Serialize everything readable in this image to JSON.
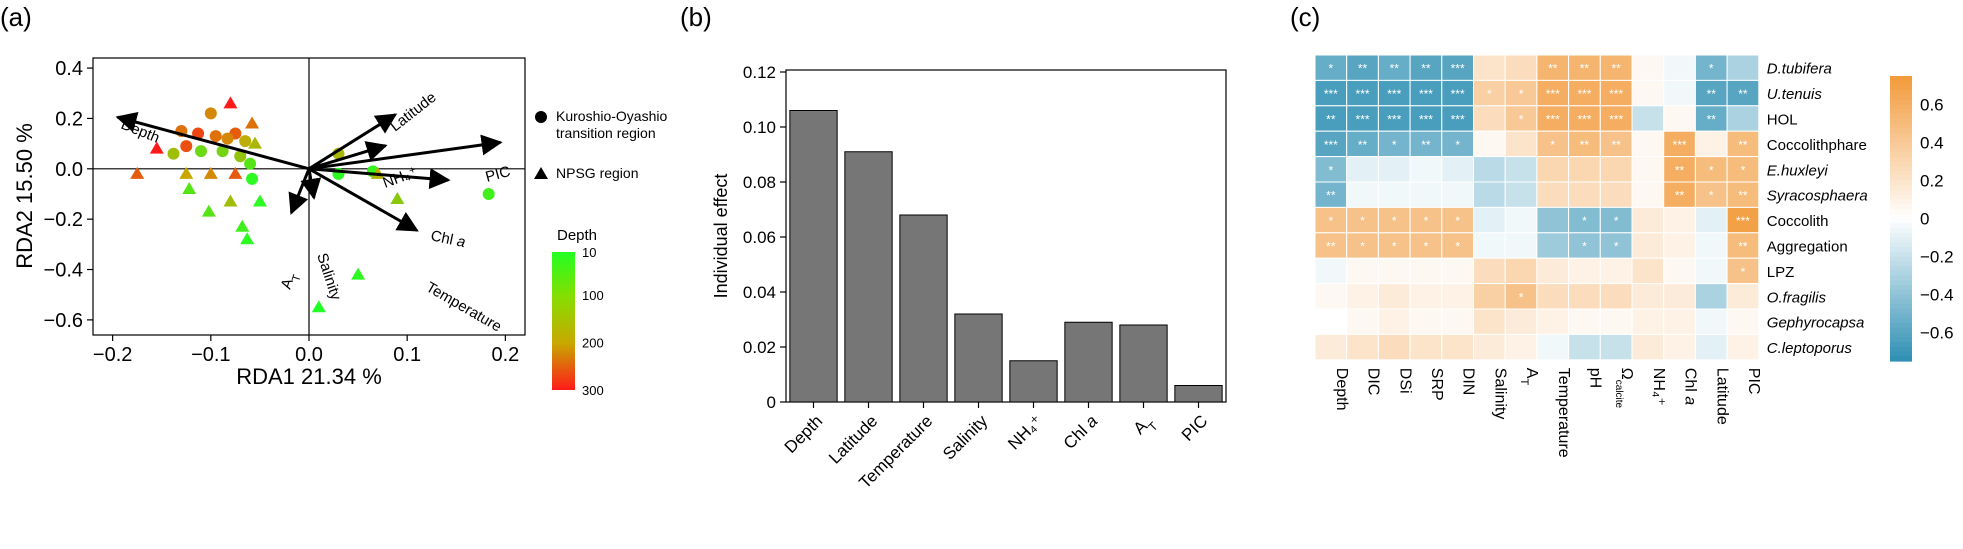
{
  "panels": {
    "a": {
      "label": "(a)"
    },
    "b": {
      "label": "(b)"
    },
    "c": {
      "label": "(c)"
    }
  },
  "colors": {
    "bar_fill": "#767676",
    "heat_neg": "#2e8fb3",
    "heat_pos": "#f29a3a",
    "depth_low": "#22ff22",
    "depth_mid": "#c8a800",
    "depth_high": "#ff1a1a"
  },
  "chart_data": [
    {
      "panel": "a",
      "type": "scatter",
      "xlabel": "RDA1 21.34 %",
      "ylabel": "RDA2 15.50 %",
      "xlim": [
        -0.22,
        0.22
      ],
      "ylim": [
        -0.66,
        0.44
      ],
      "xticks": [
        "−0.2",
        "−0.1",
        "0.0",
        "0.1",
        "0.2"
      ],
      "yticks": [
        "0.4",
        "0.2",
        "0.0",
        "−0.2",
        "−0.4",
        "−0.6"
      ],
      "legend_shapes": [
        {
          "shape": "circle",
          "label_line1": "Kuroshio-Oyashio",
          "label_line2": "transition region"
        },
        {
          "shape": "triangle",
          "label_line1": "NPSG region",
          "label_line2": ""
        }
      ],
      "colorbar": {
        "title": "Depth",
        "ticks": [
          "10",
          "100",
          "200",
          "300"
        ]
      },
      "arrows": [
        {
          "label": "Depth",
          "x": -0.195,
          "y": 0.205
        },
        {
          "label": "Latitude",
          "x": 0.088,
          "y": 0.215
        },
        {
          "label": "NH₄⁺",
          "x": 0.078,
          "y": 0.092
        },
        {
          "label": "PIC",
          "x": 0.195,
          "y": 0.105
        },
        {
          "label": "Chl a",
          "x": 0.142,
          "y": -0.045
        },
        {
          "label": "Temperature",
          "x": 0.11,
          "y": -0.245
        },
        {
          "label": "Salinity",
          "x": 0.005,
          "y": -0.115
        },
        {
          "label": "A_T",
          "x": -0.018,
          "y": -0.175
        }
      ],
      "points": [
        {
          "x": -0.1,
          "y": 0.22,
          "shape": "circle",
          "depth": 200
        },
        {
          "x": -0.08,
          "y": 0.26,
          "shape": "triangle",
          "depth": 300
        },
        {
          "x": -0.058,
          "y": 0.18,
          "shape": "triangle",
          "depth": 220
        },
        {
          "x": -0.155,
          "y": 0.08,
          "shape": "triangle",
          "depth": 300
        },
        {
          "x": -0.13,
          "y": 0.15,
          "shape": "circle",
          "depth": 220
        },
        {
          "x": -0.113,
          "y": 0.14,
          "shape": "circle",
          "depth": 260
        },
        {
          "x": -0.095,
          "y": 0.13,
          "shape": "circle",
          "depth": 220
        },
        {
          "x": -0.075,
          "y": 0.14,
          "shape": "circle",
          "depth": 240
        },
        {
          "x": -0.065,
          "y": 0.11,
          "shape": "circle",
          "depth": 160
        },
        {
          "x": -0.055,
          "y": 0.1,
          "shape": "triangle",
          "depth": 140
        },
        {
          "x": -0.138,
          "y": 0.06,
          "shape": "circle",
          "depth": 130
        },
        {
          "x": -0.125,
          "y": 0.09,
          "shape": "circle",
          "depth": 250
        },
        {
          "x": -0.11,
          "y": 0.07,
          "shape": "circle",
          "depth": 80
        },
        {
          "x": -0.088,
          "y": 0.07,
          "shape": "circle",
          "depth": 90
        },
        {
          "x": -0.083,
          "y": 0.12,
          "shape": "circle",
          "depth": 200
        },
        {
          "x": -0.07,
          "y": 0.05,
          "shape": "circle",
          "depth": 120
        },
        {
          "x": -0.06,
          "y": 0.02,
          "shape": "circle",
          "depth": 60
        },
        {
          "x": -0.175,
          "y": -0.02,
          "shape": "triangle",
          "depth": 240
        },
        {
          "x": -0.125,
          "y": -0.02,
          "shape": "triangle",
          "depth": 170
        },
        {
          "x": -0.1,
          "y": -0.02,
          "shape": "triangle",
          "depth": 200
        },
        {
          "x": -0.075,
          "y": -0.02,
          "shape": "triangle",
          "depth": 240
        },
        {
          "x": -0.058,
          "y": -0.04,
          "shape": "circle",
          "depth": 20
        },
        {
          "x": -0.122,
          "y": -0.08,
          "shape": "triangle",
          "depth": 60
        },
        {
          "x": -0.08,
          "y": -0.13,
          "shape": "triangle",
          "depth": 130
        },
        {
          "x": -0.05,
          "y": -0.13,
          "shape": "triangle",
          "depth": 20
        },
        {
          "x": -0.102,
          "y": -0.17,
          "shape": "triangle",
          "depth": 60
        },
        {
          "x": -0.068,
          "y": -0.23,
          "shape": "triangle",
          "depth": 40
        },
        {
          "x": -0.063,
          "y": -0.28,
          "shape": "triangle",
          "depth": 20
        },
        {
          "x": 0.03,
          "y": 0.06,
          "shape": "circle",
          "depth": 140
        },
        {
          "x": 0.03,
          "y": -0.02,
          "shape": "circle",
          "depth": 20
        },
        {
          "x": 0.065,
          "y": -0.01,
          "shape": "circle",
          "depth": 30
        },
        {
          "x": 0.07,
          "y": -0.02,
          "shape": "triangle",
          "depth": 150
        },
        {
          "x": 0.09,
          "y": -0.12,
          "shape": "triangle",
          "depth": 110
        },
        {
          "x": 0.183,
          "y": -0.1,
          "shape": "circle",
          "depth": 40
        },
        {
          "x": 0.05,
          "y": -0.42,
          "shape": "triangle",
          "depth": 20
        },
        {
          "x": 0.01,
          "y": -0.55,
          "shape": "triangle",
          "depth": 10
        }
      ]
    },
    {
      "panel": "b",
      "type": "bar",
      "ylabel": "Individual effect",
      "ylim": [
        0,
        0.12
      ],
      "yticks": [
        "0",
        "0.02",
        "0.04",
        "0.06",
        "0.08",
        "0.10",
        "0.12"
      ],
      "categories": [
        "Depth",
        "Latitude",
        "Temperature",
        "Salinity",
        "NH₄⁺",
        "Chl a",
        "A_T",
        "PIC"
      ],
      "values": [
        0.106,
        0.091,
        0.068,
        0.032,
        0.015,
        0.029,
        0.028,
        0.006
      ]
    },
    {
      "panel": "c",
      "type": "heatmap",
      "columns": [
        "Depth",
        "DIC",
        "DSi",
        "SRP",
        "DIN",
        "Salinity",
        "A_T",
        "Temperature",
        "pH",
        "Ω_calcite",
        "NH₄⁺",
        "Chl a",
        "Latitude",
        "PIC"
      ],
      "rows": [
        "D.tubifera",
        "U.tenuis",
        "HOL",
        "Coccolithphare",
        "E.huxleyi",
        "Syracosphaera",
        "Coccolith",
        "Aggregation",
        "LPZ",
        "O.fragilis",
        "Gephyrocapsa",
        "C.leptoporus"
      ],
      "italic_rows": [
        true,
        true,
        false,
        false,
        true,
        true,
        false,
        false,
        false,
        true,
        true,
        true
      ],
      "colorbar": {
        "ticks": [
          "0.6",
          "0.4",
          "0.2",
          "0",
          "−0.2",
          "−0.4",
          "−0.6"
        ],
        "range": [
          -0.75,
          0.75
        ]
      },
      "values": [
        [
          -0.55,
          -0.6,
          -0.55,
          -0.6,
          -0.6,
          0.2,
          0.25,
          0.55,
          0.55,
          0.55,
          0.05,
          -0.05,
          -0.5,
          -0.3
        ],
        [
          -0.65,
          -0.65,
          -0.65,
          -0.65,
          -0.65,
          0.35,
          0.4,
          0.6,
          0.6,
          0.6,
          0.05,
          -0.05,
          -0.6,
          -0.6
        ],
        [
          -0.65,
          -0.65,
          -0.65,
          -0.65,
          -0.65,
          0.25,
          0.4,
          0.6,
          0.6,
          0.6,
          -0.2,
          0.05,
          -0.55,
          -0.3
        ],
        [
          -0.6,
          -0.55,
          -0.5,
          -0.5,
          -0.5,
          0.05,
          0.2,
          0.45,
          0.5,
          0.45,
          0.05,
          0.6,
          0.1,
          0.5
        ],
        [
          -0.45,
          -0.1,
          -0.1,
          -0.05,
          -0.1,
          -0.25,
          -0.2,
          0.3,
          0.3,
          0.3,
          0.05,
          0.6,
          0.5,
          0.5
        ],
        [
          -0.5,
          -0.05,
          -0.05,
          -0.05,
          -0.05,
          -0.25,
          -0.2,
          0.25,
          0.25,
          0.25,
          0.05,
          0.6,
          0.45,
          0.5
        ],
        [
          0.45,
          0.45,
          0.45,
          0.45,
          0.45,
          -0.1,
          -0.05,
          -0.4,
          -0.45,
          -0.45,
          0.15,
          0.1,
          -0.1,
          0.7
        ],
        [
          0.45,
          0.45,
          0.45,
          0.45,
          0.45,
          -0.05,
          -0.05,
          -0.35,
          -0.4,
          -0.4,
          0.15,
          0.1,
          -0.05,
          0.5
        ],
        [
          -0.05,
          0.05,
          0.05,
          0.05,
          0.05,
          0.25,
          0.3,
          0.15,
          0.1,
          0.1,
          0.2,
          0.05,
          -0.05,
          0.45
        ],
        [
          0.05,
          0.1,
          0.15,
          0.1,
          0.1,
          0.35,
          0.45,
          0.25,
          0.25,
          0.25,
          0.15,
          0.15,
          -0.3,
          0.15
        ],
        [
          0.0,
          0.05,
          0.1,
          0.05,
          0.05,
          0.2,
          0.15,
          0.1,
          0.05,
          0.05,
          0.1,
          0.1,
          -0.05,
          0.05
        ],
        [
          0.15,
          0.2,
          0.25,
          0.2,
          0.2,
          0.15,
          0.1,
          -0.05,
          -0.2,
          -0.2,
          0.15,
          0.1,
          -0.1,
          0.1
        ]
      ],
      "stars": [
        [
          "*",
          "**",
          "**",
          "**",
          "***",
          "",
          "",
          "**",
          "**",
          "**",
          "",
          "",
          "*",
          ""
        ],
        [
          "***",
          "***",
          "***",
          "***",
          "***",
          "*",
          "*",
          "***",
          "***",
          "***",
          "",
          "",
          "**",
          "**"
        ],
        [
          "**",
          "***",
          "***",
          "***",
          "***",
          "",
          "*",
          "***",
          "***",
          "***",
          "",
          "",
          "**",
          ""
        ],
        [
          "***",
          "**",
          "*",
          "**",
          "*",
          "",
          "",
          "*",
          "**",
          "**",
          "",
          "***",
          "",
          "**"
        ],
        [
          "*",
          "",
          "",
          "",
          "",
          "",
          "",
          "",
          "",
          "",
          "",
          "**",
          "*",
          "*"
        ],
        [
          "**",
          "",
          "",
          "",
          "",
          "",
          "",
          "",
          "",
          "",
          "",
          "**",
          "*",
          "**"
        ],
        [
          "*",
          "*",
          "*",
          "*",
          "*",
          "",
          "",
          "",
          "*",
          "*",
          "",
          "",
          "",
          "***"
        ],
        [
          "**",
          "*",
          "*",
          "*",
          "*",
          "",
          "",
          "",
          "*",
          "*",
          "",
          "",
          "",
          "**"
        ],
        [
          "",
          "",
          "",
          "",
          "",
          "",
          "",
          "",
          "",
          "",
          "",
          "",
          "",
          "*"
        ],
        [
          "",
          "",
          "",
          "",
          "",
          "",
          "*",
          "",
          "",
          "",
          "",
          "",
          "",
          ""
        ],
        [
          "",
          "",
          "",
          "",
          "",
          "",
          "",
          "",
          "",
          "",
          "",
          "",
          "",
          ""
        ],
        [
          "",
          "",
          "",
          "",
          "",
          "",
          "",
          "",
          "",
          "",
          "",
          "",
          "",
          ""
        ]
      ]
    }
  ]
}
